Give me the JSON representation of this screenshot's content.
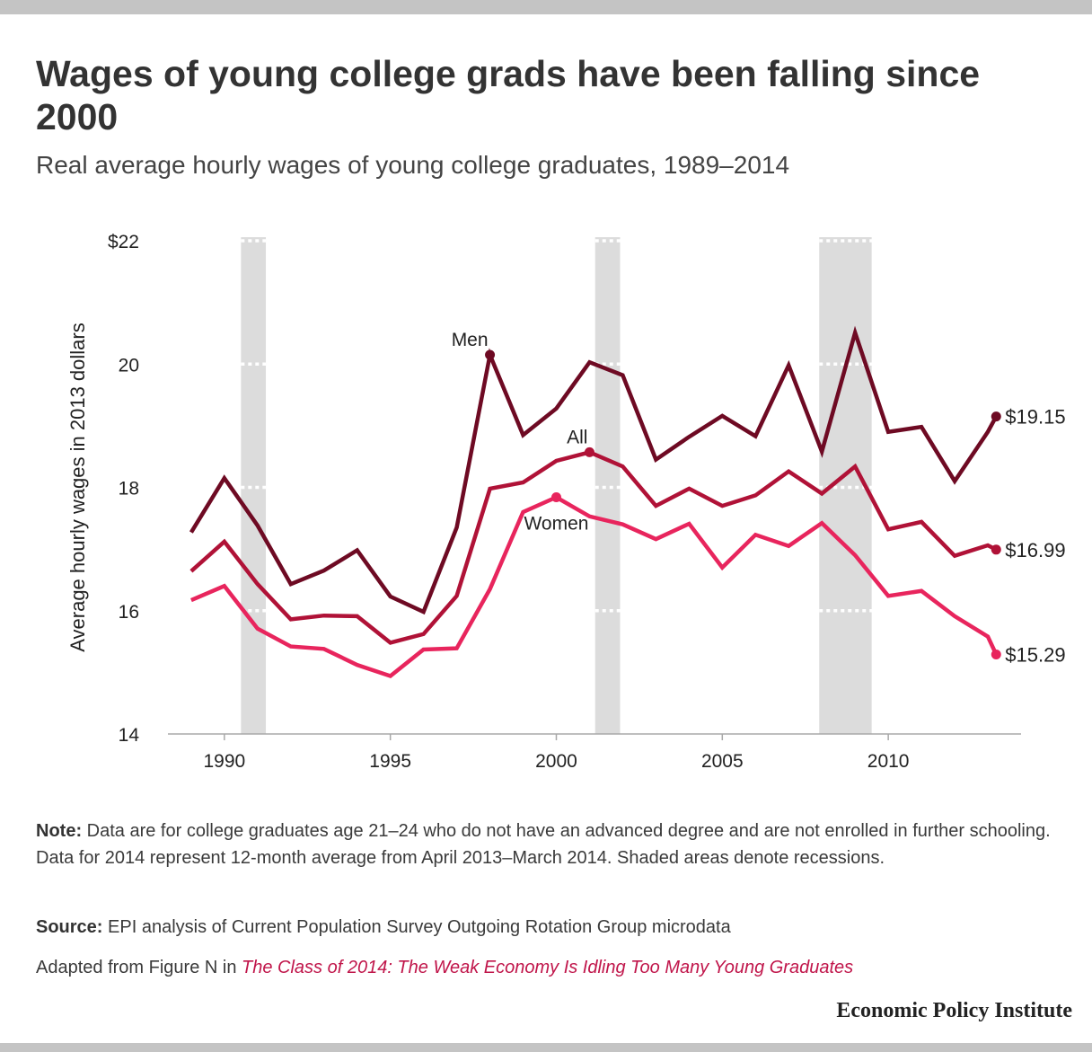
{
  "title": "Wages of young college grads have been falling since 2000",
  "subtitle": "Real average hourly wages of young college graduates, 1989–2014",
  "note": {
    "label": "Note:",
    "text": " Data are for college graduates age 21–24 who do not have an advanced degree and are not enrolled in further schooling. Data for 2014 represent 12-month average from April 2013–March 2014. Shaded areas denote recessions."
  },
  "source": {
    "label": "Source:",
    "text": " EPI analysis of Current Population Survey Outgoing Rotation Group microdata"
  },
  "adapted": {
    "prefix": "Adapted from Figure N in ",
    "link_text": "The Class of 2014: The Weak Economy Is Idling Too Many Young Graduates"
  },
  "brand": "Economic Policy Institute",
  "chart_data": {
    "type": "line",
    "ylabel": "Average hourly wages in 2013 dollars",
    "ylim": [
      14,
      22
    ],
    "xlim": [
      1988.3,
      2014
    ],
    "y_ticks": [
      {
        "value": 22,
        "label": "$22"
      },
      {
        "value": 20,
        "label": "20"
      },
      {
        "value": 18,
        "label": "18"
      },
      {
        "value": 16,
        "label": "16"
      },
      {
        "value": 14,
        "label": "14"
      }
    ],
    "x_ticks": [
      {
        "value": 1990,
        "label": "1990"
      },
      {
        "value": 1995,
        "label": "1995"
      },
      {
        "value": 2000,
        "label": "2000"
      },
      {
        "value": 2005,
        "label": "2005"
      },
      {
        "value": 2010,
        "label": "2010"
      }
    ],
    "recessions": [
      [
        1990.5,
        1991.25
      ],
      [
        2001.17,
        2001.92
      ],
      [
        2007.92,
        2009.5
      ]
    ],
    "x": [
      1989,
      1990,
      1991,
      1992,
      1993,
      1994,
      1995,
      1996,
      1997,
      1998,
      1999,
      2000,
      2001,
      2002,
      2003,
      2004,
      2005,
      2006,
      2007,
      2008,
      2009,
      2010,
      2011,
      2012,
      2013,
      2013.25
    ],
    "series": [
      {
        "name": "Men",
        "color": "#6e0a23",
        "values": [
          17.27,
          18.15,
          17.38,
          16.43,
          16.65,
          16.98,
          16.23,
          15.98,
          17.35,
          20.15,
          18.85,
          19.28,
          20.03,
          19.82,
          18.45,
          18.82,
          19.16,
          18.83,
          19.98,
          18.58,
          20.51,
          18.9,
          18.98,
          18.1,
          18.9,
          19.15
        ],
        "end_label": "$19.15",
        "label_x": 1998,
        "label_pos": "above-left",
        "marker_x": [
          1998,
          2013.25
        ]
      },
      {
        "name": "All",
        "color": "#b01237",
        "values": [
          16.64,
          17.12,
          16.43,
          15.86,
          15.92,
          15.91,
          15.48,
          15.62,
          16.24,
          17.98,
          18.08,
          18.43,
          18.57,
          18.34,
          17.7,
          17.98,
          17.7,
          17.87,
          18.26,
          17.9,
          18.34,
          17.32,
          17.44,
          16.89,
          17.06,
          16.99
        ],
        "end_label": "$16.99",
        "label_x": 2001,
        "label_pos": "above-left",
        "marker_x": [
          2001,
          2013.25
        ]
      },
      {
        "name": "Women",
        "color": "#e8255d",
        "values": [
          16.17,
          16.4,
          15.71,
          15.42,
          15.38,
          15.12,
          14.94,
          15.37,
          15.39,
          16.35,
          17.6,
          17.84,
          17.53,
          17.4,
          17.16,
          17.41,
          16.7,
          17.23,
          17.05,
          17.42,
          16.9,
          16.24,
          16.32,
          15.91,
          15.58,
          15.29
        ],
        "end_label": "$15.29",
        "label_x": 2000,
        "label_pos": "below",
        "marker_x": [
          2000,
          2013.25
        ]
      }
    ]
  }
}
